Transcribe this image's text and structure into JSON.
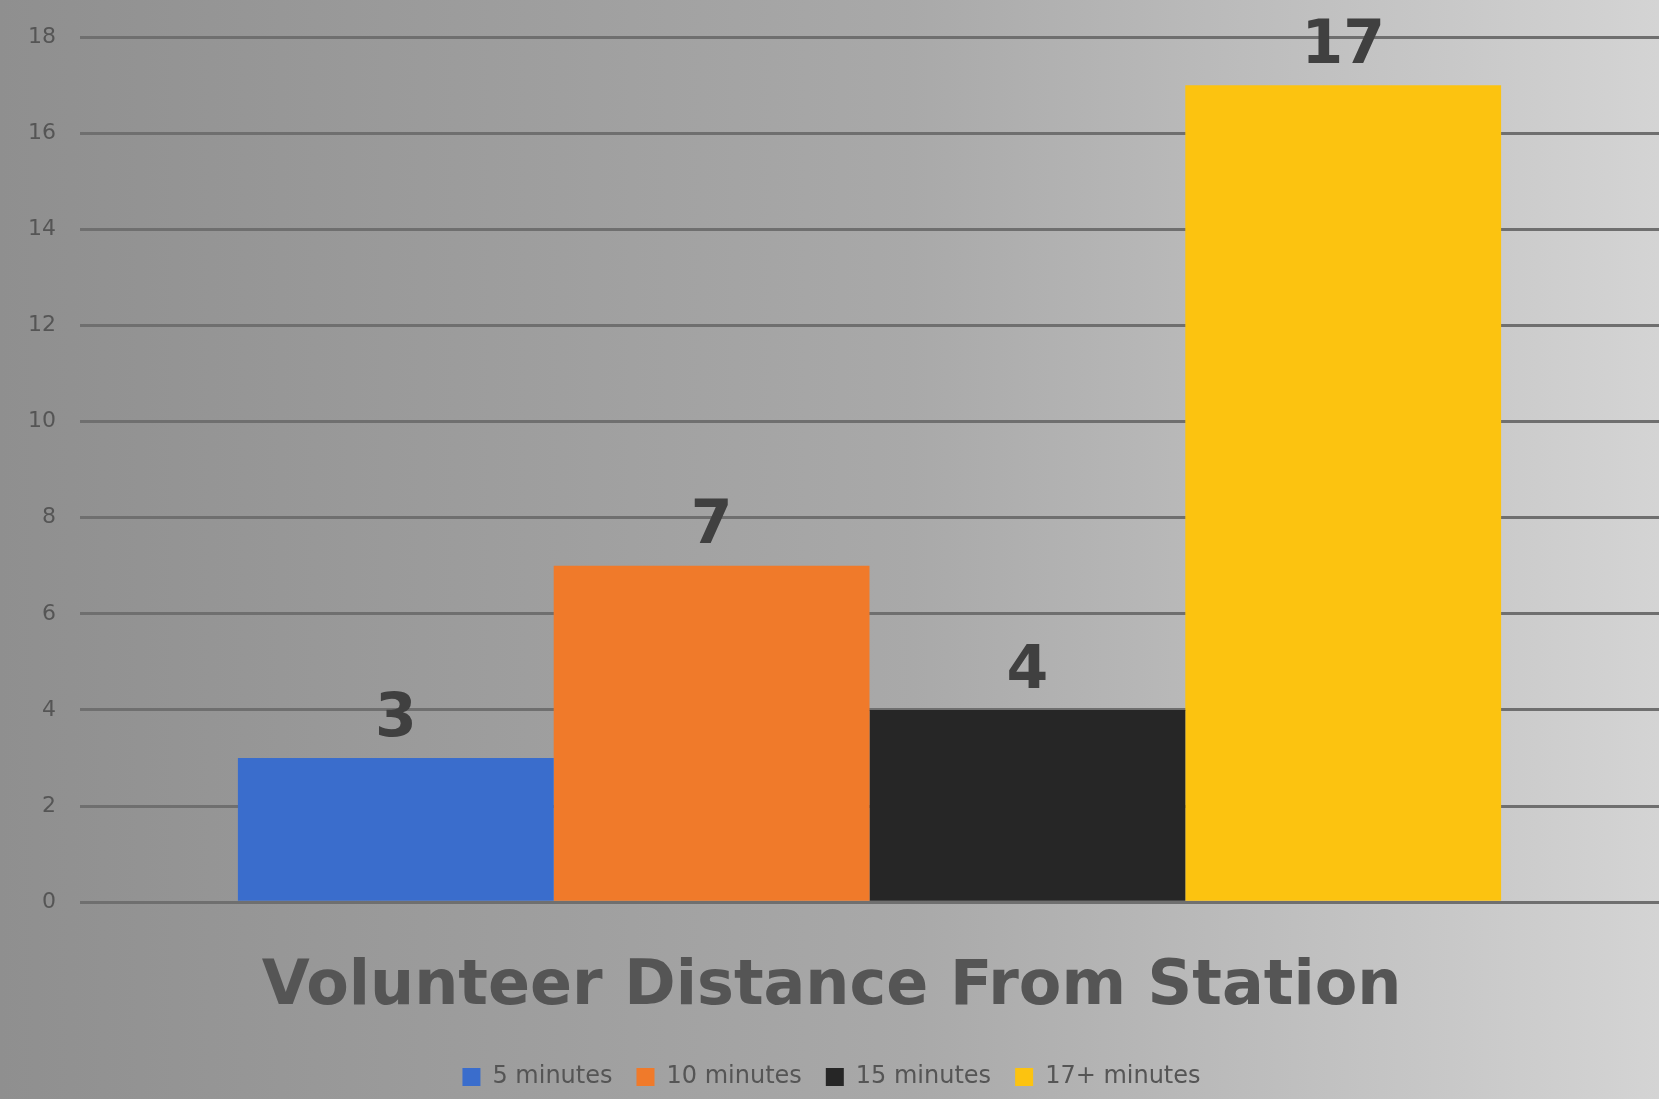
{
  "chart_data": {
    "type": "bar",
    "title": "Volunteer Distance From Station",
    "categories": [
      null
    ],
    "series": [
      {
        "name": "5 minutes",
        "color": "#3a6dcc",
        "values": [
          3
        ]
      },
      {
        "name": "10 minutes",
        "color": "#f07a2a",
        "values": [
          7
        ]
      },
      {
        "name": "15 minutes",
        "color": "#262626",
        "values": [
          4
        ]
      },
      {
        "name": "17+ minutes",
        "color": "#fcc310",
        "values": [
          17
        ]
      }
    ],
    "ylim": [
      0,
      18
    ],
    "yticks": [
      0,
      2,
      4,
      6,
      8,
      10,
      12,
      14,
      16,
      18
    ],
    "grid": "y",
    "legend": "bottom",
    "data_labels": true
  }
}
